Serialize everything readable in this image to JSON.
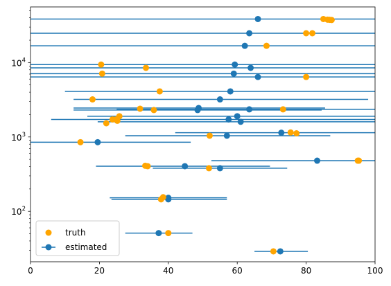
{
  "chart_data": {
    "type": "scatter",
    "title": "",
    "xlabel": "",
    "ylabel": "",
    "xlim": [
      0,
      100
    ],
    "ylim": [
      21,
      56000
    ],
    "yscale": "log",
    "grid": false,
    "legend_position": "bottom-left",
    "x_ticks": [
      {
        "value": 0,
        "label": "0"
      },
      {
        "value": 20,
        "label": "20"
      },
      {
        "value": 40,
        "label": "40"
      },
      {
        "value": 60,
        "label": "60"
      },
      {
        "value": 80,
        "label": "80"
      },
      {
        "value": 100,
        "label": "100"
      }
    ],
    "y_ticks": [
      {
        "value": 100,
        "label": "10",
        "exp": "2"
      },
      {
        "value": 1000,
        "label": "10",
        "exp": "3"
      },
      {
        "value": 10000,
        "label": "10",
        "exp": "4"
      }
    ],
    "series": [
      {
        "name": "truth",
        "color": "#ffa500",
        "marker": "circle",
        "points": [
          {
            "x": 85.0,
            "y": 38500
          },
          {
            "x": 86.2,
            "y": 37800
          },
          {
            "x": 86.8,
            "y": 37600
          },
          {
            "x": 87.4,
            "y": 37400
          },
          {
            "x": 80.0,
            "y": 24800
          },
          {
            "x": 81.8,
            "y": 24800
          },
          {
            "x": 68.5,
            "y": 16800
          },
          {
            "x": 20.5,
            "y": 9400
          },
          {
            "x": 33.5,
            "y": 8500
          },
          {
            "x": 20.8,
            "y": 7100
          },
          {
            "x": 80.0,
            "y": 6400
          },
          {
            "x": 37.5,
            "y": 4100
          },
          {
            "x": 18.0,
            "y": 3200
          },
          {
            "x": 31.8,
            "y": 2400
          },
          {
            "x": 35.8,
            "y": 2300
          },
          {
            "x": 73.3,
            "y": 2350
          },
          {
            "x": 25.8,
            "y": 1900
          },
          {
            "x": 23.8,
            "y": 1720
          },
          {
            "x": 24.8,
            "y": 1720
          },
          {
            "x": 25.2,
            "y": 1650
          },
          {
            "x": 22.0,
            "y": 1530
          },
          {
            "x": 75.5,
            "y": 1150
          },
          {
            "x": 77.2,
            "y": 1120
          },
          {
            "x": 52.0,
            "y": 1040
          },
          {
            "x": 14.5,
            "y": 850
          },
          {
            "x": 95.0,
            "y": 480
          },
          {
            "x": 95.3,
            "y": 480
          },
          {
            "x": 33.3,
            "y": 410
          },
          {
            "x": 34.0,
            "y": 405
          },
          {
            "x": 51.8,
            "y": 380
          },
          {
            "x": 38.5,
            "y": 155
          },
          {
            "x": 37.9,
            "y": 145
          },
          {
            "x": 40.0,
            "y": 51
          },
          {
            "x": 70.5,
            "y": 29
          }
        ]
      },
      {
        "name": "estimated",
        "color": "#1f77b4",
        "marker": "circle",
        "error_bars": "horizontal",
        "points": [
          {
            "x": 66.0,
            "y": 38500,
            "xmin": 0,
            "xmax": 100
          },
          {
            "x": 63.5,
            "y": 24800,
            "xmin": 0,
            "xmax": 100
          },
          {
            "x": 62.2,
            "y": 16800,
            "xmin": 0,
            "xmax": 100
          },
          {
            "x": 59.3,
            "y": 9400,
            "xmin": 0,
            "xmax": 100
          },
          {
            "x": 63.9,
            "y": 8500,
            "xmin": 0,
            "xmax": 100
          },
          {
            "x": 59.0,
            "y": 7100,
            "xmin": 0,
            "xmax": 100
          },
          {
            "x": 66.0,
            "y": 6400,
            "xmin": 0,
            "xmax": 100
          },
          {
            "x": 58.0,
            "y": 4100,
            "xmin": 10.0,
            "xmax": 100
          },
          {
            "x": 55.0,
            "y": 3200,
            "xmin": 12.5,
            "xmax": 98.0
          },
          {
            "x": 48.8,
            "y": 2450,
            "xmin": 12.5,
            "xmax": 85.5
          },
          {
            "x": 48.5,
            "y": 2300,
            "xmin": 12.5,
            "xmax": 84.5
          },
          {
            "x": 63.5,
            "y": 2350,
            "xmin": 25.0,
            "xmax": 100
          },
          {
            "x": 60.0,
            "y": 1900,
            "xmin": 16.5,
            "xmax": 100
          },
          {
            "x": 57.5,
            "y": 1720,
            "xmin": 6.0,
            "xmax": 100
          },
          {
            "x": 61.0,
            "y": 1600,
            "xmin": 19.5,
            "xmax": 100
          },
          {
            "x": 72.8,
            "y": 1140,
            "xmin": 42.0,
            "xmax": 100
          },
          {
            "x": 57.0,
            "y": 1040,
            "xmin": 27.5,
            "xmax": 87.0
          },
          {
            "x": 19.5,
            "y": 850,
            "xmin": 0,
            "xmax": 46.5
          },
          {
            "x": 83.2,
            "y": 480,
            "xmin": 52.5,
            "xmax": 100
          },
          {
            "x": 44.8,
            "y": 405,
            "xmin": 19.0,
            "xmax": 69.5
          },
          {
            "x": 55.0,
            "y": 380,
            "xmin": 35.5,
            "xmax": 74.5
          },
          {
            "x": 40.0,
            "y": 152,
            "xmin": 23.0,
            "xmax": 57.0
          },
          {
            "x": 40.0,
            "y": 145,
            "xmin": 23.5,
            "xmax": 57.0
          },
          {
            "x": 37.2,
            "y": 51,
            "xmin": 27.5,
            "xmax": 47.0
          },
          {
            "x": 72.5,
            "y": 29,
            "xmin": 65.0,
            "xmax": 80.5
          }
        ]
      }
    ]
  }
}
